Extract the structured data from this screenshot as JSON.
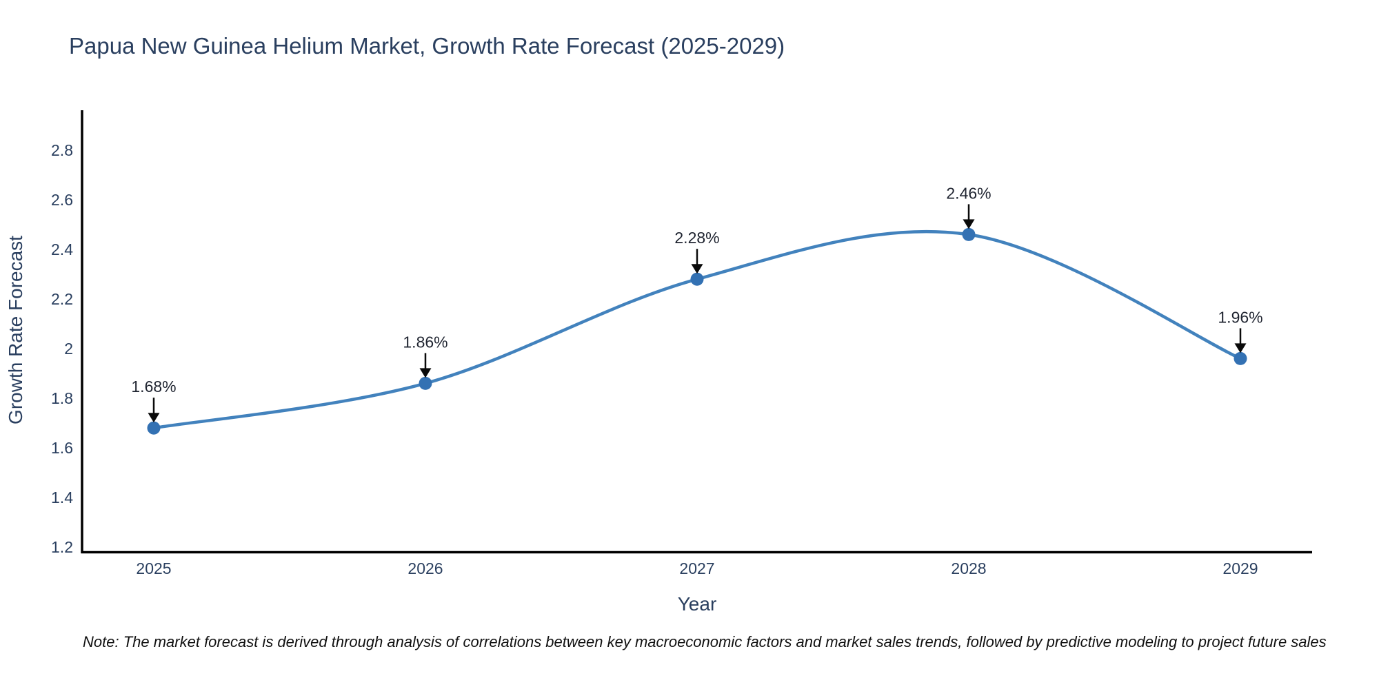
{
  "title": "Papua New Guinea Helium Market, Growth Rate Forecast (2025-2029)",
  "note": "Note: The market forecast is derived through analysis of correlations between key macroeconomic factors and market sales trends, followed by predictive modeling to project future sales",
  "colors": {
    "line": "#4282bd",
    "marker": "#3371b3",
    "axis_line": "#000000",
    "axis_text": "#2a3f5f",
    "annotation_text": "#1f2430",
    "arrow": "#0a0a0a",
    "title_text": "#2a3f5f",
    "background": "#ffffff"
  },
  "chart_data": {
    "type": "line",
    "line_shape": "spline",
    "title": "Papua New Guinea Helium Market, Growth Rate Forecast (2025-2029)",
    "xlabel": "Year",
    "ylabel": "Growth Rate Forecast",
    "x": [
      2025,
      2026,
      2027,
      2028,
      2029
    ],
    "series": [
      {
        "name": "Growth Rate Forecast",
        "values": [
          1.68,
          1.86,
          2.28,
          2.46,
          1.96
        ]
      }
    ],
    "annotations": [
      "1.68%",
      "1.86%",
      "2.28%",
      "2.46%",
      "1.96%"
    ],
    "yticks": {
      "values": [
        1.2,
        1.4,
        1.6,
        1.8,
        2.0,
        2.2,
        2.4,
        2.6,
        2.8
      ],
      "labels": [
        "1.2",
        "1.4",
        "1.6",
        "1.8",
        "2",
        "2.2",
        "2.4",
        "2.6",
        "2.8"
      ]
    },
    "xticks": [
      "2025",
      "2026",
      "2027",
      "2028",
      "2029"
    ],
    "ylim": [
      1.18,
      2.95
    ],
    "grid": false,
    "legend_position": "none",
    "markers": true
  }
}
